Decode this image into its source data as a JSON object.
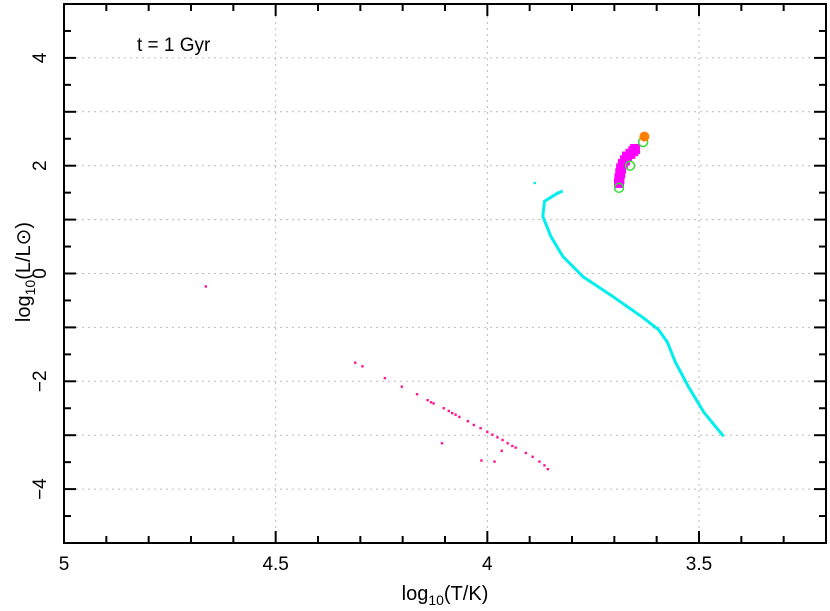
{
  "chart_data": {
    "type": "scatter",
    "title": "",
    "annotation": "t = 1 Gyr",
    "xlabel": "log10(T/K)",
    "ylabel": "log10(L/L⊙)",
    "xlim": [
      5,
      3.2
    ],
    "ylim": [
      -5,
      5
    ],
    "x_reversed": true,
    "grid": true,
    "x_ticks": [
      5,
      4.5,
      4,
      3.5
    ],
    "x_tick_labels": [
      "5",
      "4.5",
      "4",
      "3.5"
    ],
    "y_ticks": [
      4,
      2,
      0,
      -2,
      -4
    ],
    "y_tick_labels": [
      "4",
      "2",
      "0",
      "−2",
      "−4"
    ],
    "series": [
      {
        "color": "#00eeee",
        "style": "line",
        "x": [
          3.442,
          3.489,
          3.525,
          3.556,
          3.575,
          3.596,
          3.632,
          3.703,
          3.774,
          3.822,
          3.85,
          3.869,
          3.865,
          3.834,
          3.822
        ],
        "y": [
          -3.02,
          -2.57,
          -2.1,
          -1.64,
          -1.27,
          -1.04,
          -0.82,
          -0.43,
          -0.06,
          0.32,
          0.69,
          1.06,
          1.34,
          1.49,
          1.53
        ]
      },
      {
        "color": "#00eeee",
        "style": "dot",
        "x": [
          3.888
        ],
        "y": [
          1.68
        ]
      },
      {
        "color": "#ff00ff",
        "style": "square",
        "x": [
          3.689,
          3.688,
          3.686,
          3.684,
          3.68,
          3.675,
          3.67,
          3.662,
          3.655,
          3.651
        ],
        "y": [
          1.68,
          1.76,
          1.86,
          1.95,
          2.03,
          2.1,
          2.17,
          2.22,
          2.27,
          2.31
        ]
      },
      {
        "color": "#ff1493",
        "style": "dot",
        "x": [
          4.665,
          4.312,
          4.295,
          4.242,
          4.202,
          4.166,
          4.141,
          4.133,
          4.127,
          4.103,
          4.091,
          4.083,
          4.075,
          4.066,
          4.046,
          4.032,
          4.016,
          4.0,
          3.988,
          3.976,
          3.964,
          3.952,
          3.941,
          3.933,
          3.909,
          3.893,
          3.877,
          3.865,
          3.857,
          4.107,
          4.014,
          3.983,
          3.966
        ],
        "y": [
          -0.24,
          -1.655,
          -1.722,
          -1.94,
          -2.1,
          -2.24,
          -2.35,
          -2.39,
          -2.41,
          -2.5,
          -2.55,
          -2.59,
          -2.62,
          -2.66,
          -2.74,
          -2.81,
          -2.87,
          -2.94,
          -2.99,
          -3.04,
          -3.09,
          -3.15,
          -3.2,
          -3.23,
          -3.33,
          -3.4,
          -3.49,
          -3.56,
          -3.63,
          -3.15,
          -3.47,
          -3.49,
          -3.29
        ]
      },
      {
        "color": "#33dd33",
        "style": "open-circle",
        "x": [
          3.689,
          3.663,
          3.632
        ],
        "y": [
          1.59,
          2.0,
          2.44
        ]
      },
      {
        "color": "#ff7f00",
        "style": "filled-circle",
        "x": [
          3.629
        ],
        "y": [
          2.54
        ]
      }
    ]
  }
}
